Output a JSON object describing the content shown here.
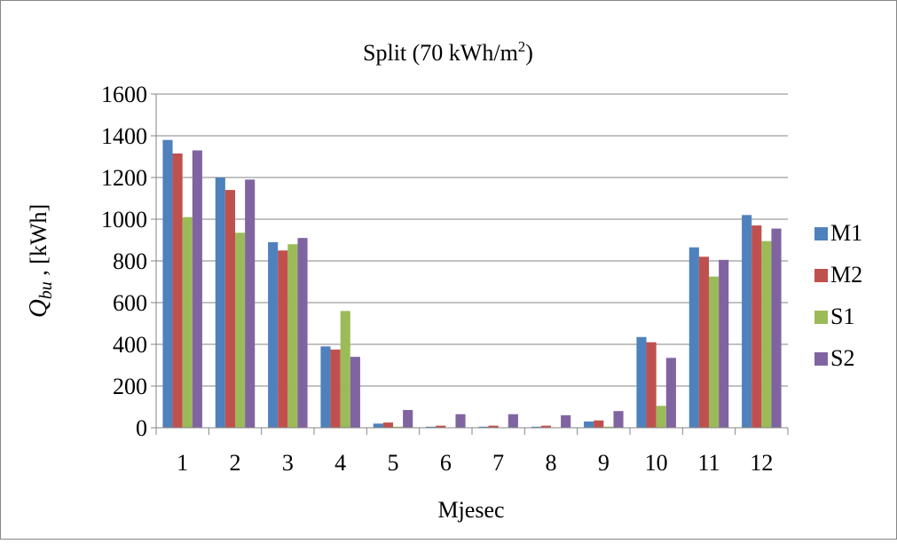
{
  "chart_data": {
    "type": "bar",
    "title_main": "Split (70 kWh/m",
    "title_sup": "2",
    "title_end": ")",
    "ylabel_var": "Q",
    "ylabel_sub": "bu",
    "ylabel_unit": " , [kWh]",
    "xlabel": "Mjesec",
    "categories": [
      "1",
      "2",
      "3",
      "4",
      "5",
      "6",
      "7",
      "8",
      "9",
      "10",
      "11",
      "12"
    ],
    "ylim": [
      0,
      1600
    ],
    "yticks": [
      "0",
      "200",
      "400",
      "600",
      "800",
      "1000",
      "1200",
      "1400",
      "1600"
    ],
    "grid": true,
    "legend_position": "right",
    "series": [
      {
        "name": "M1",
        "color": "#4F81BD",
        "values": [
          1380,
          1200,
          890,
          390,
          20,
          5,
          5,
          5,
          30,
          435,
          865,
          1020
        ]
      },
      {
        "name": "M2",
        "color": "#C0504D",
        "values": [
          1315,
          1140,
          850,
          375,
          25,
          10,
          10,
          10,
          35,
          410,
          820,
          970
        ]
      },
      {
        "name": "S1",
        "color": "#9BBB59",
        "values": [
          1010,
          935,
          880,
          560,
          5,
          0,
          0,
          0,
          5,
          105,
          725,
          895
        ]
      },
      {
        "name": "S2",
        "color": "#8064A2",
        "values": [
          1330,
          1190,
          910,
          340,
          85,
          65,
          65,
          60,
          80,
          335,
          805,
          955
        ]
      }
    ]
  }
}
